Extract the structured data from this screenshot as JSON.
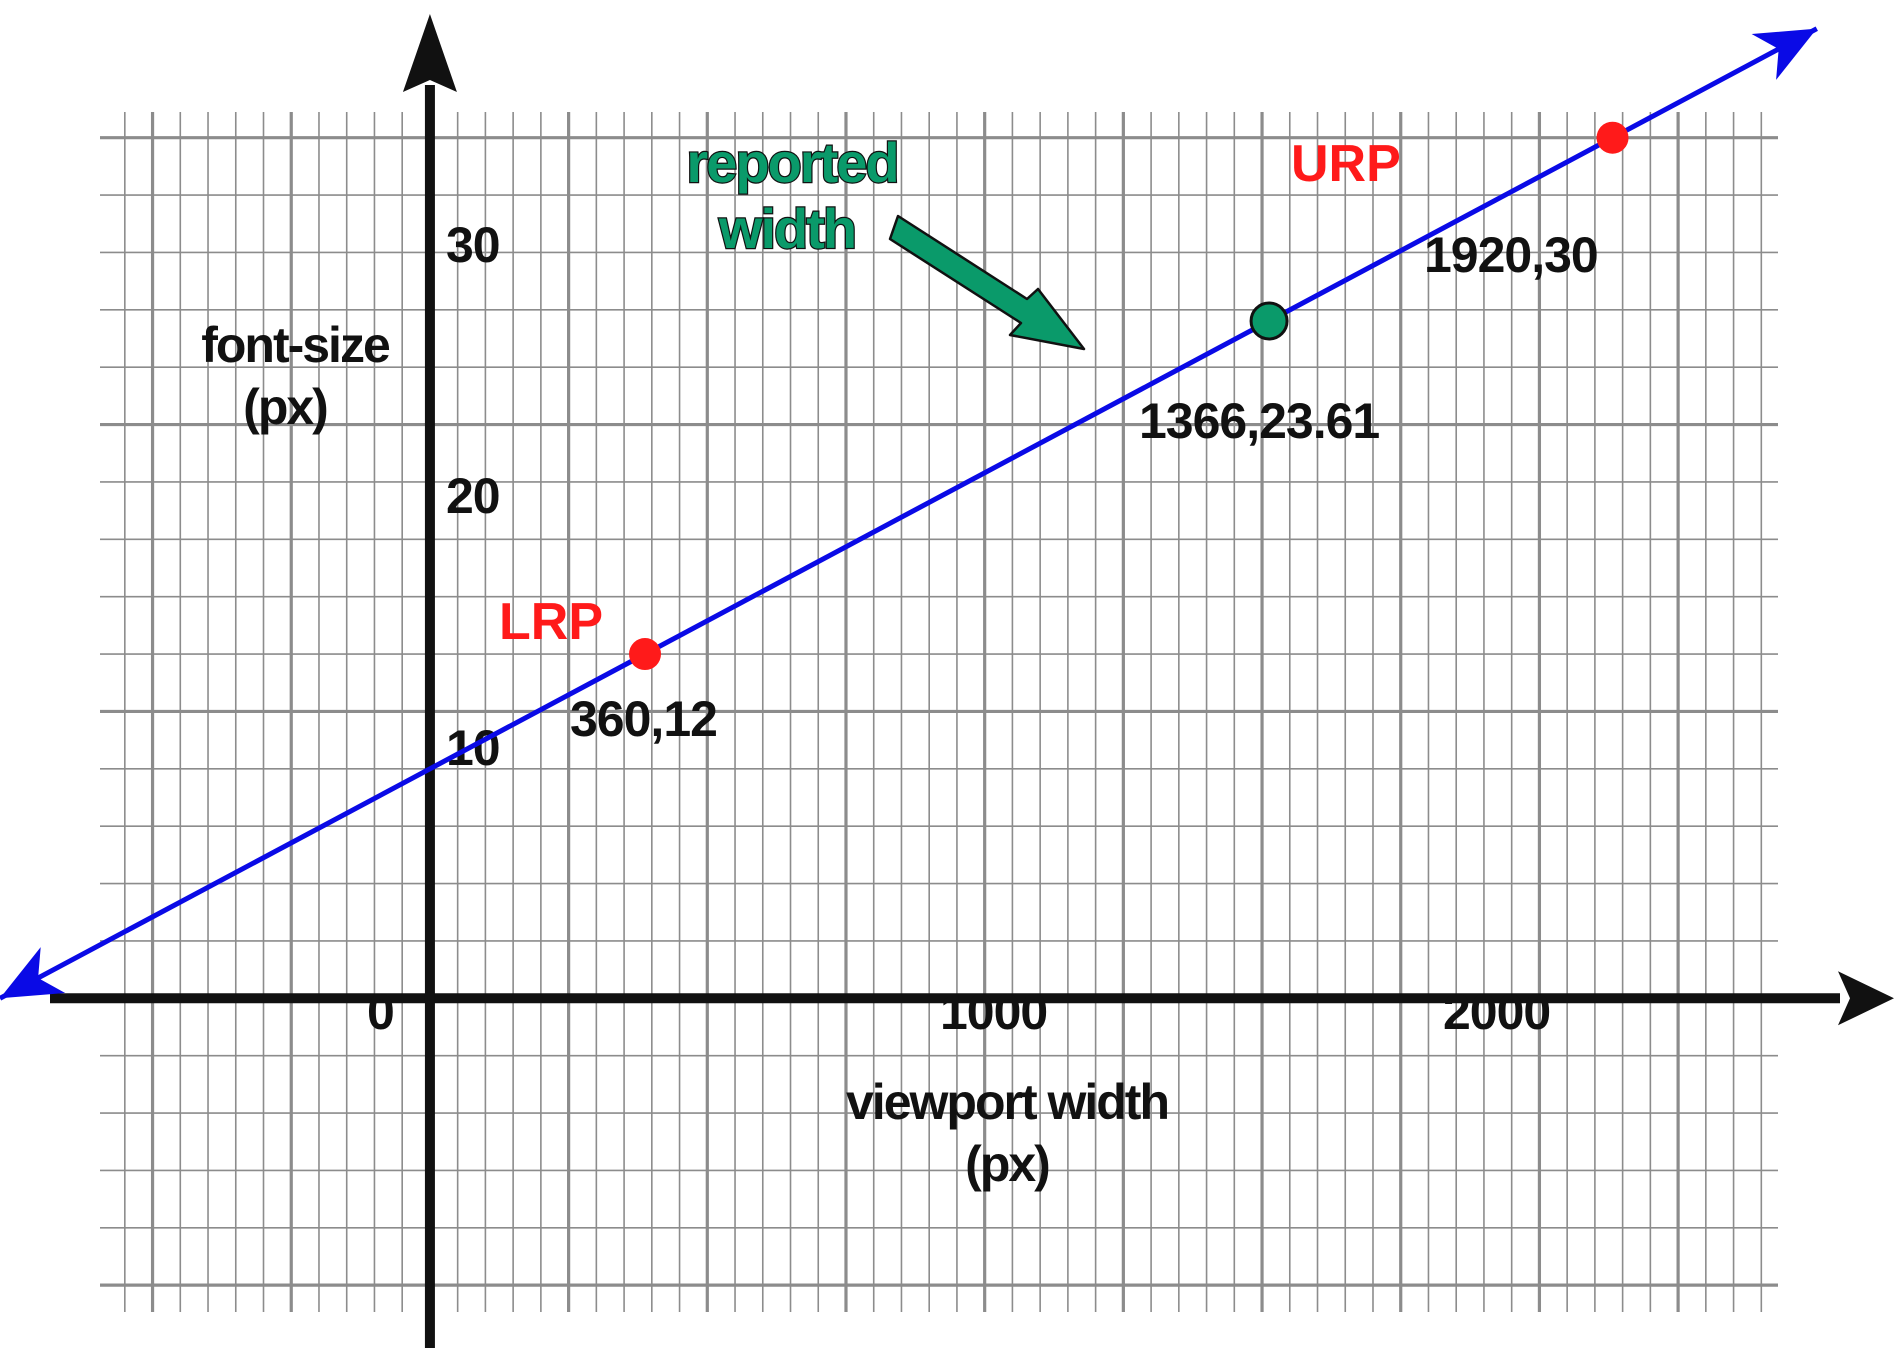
{
  "colors": {
    "grid": "#8c8c8c",
    "axis": "#111111",
    "line": "#0a0ae6",
    "reference_point": "#ff1a1a",
    "reported_point": "#0a9a6a"
  },
  "chart_data": {
    "type": "line",
    "xlabel": [
      "viewport width",
      "(px)"
    ],
    "ylabel": [
      "font-size",
      "(px)"
    ],
    "x_ticks": [
      {
        "value": 0,
        "label": "0"
      },
      {
        "value": 1000,
        "label": "1000"
      },
      {
        "value": 2000,
        "label": "2000"
      }
    ],
    "y_ticks": [
      {
        "value": 10,
        "label": "10"
      },
      {
        "value": 20,
        "label": "20"
      },
      {
        "value": 30,
        "label": "30"
      }
    ],
    "xlim": [
      -1550,
      5300
    ],
    "ylim": [
      -12.4,
      34.8
    ],
    "grid": true,
    "grid_minor_x": 100,
    "grid_minor_y": 2,
    "line": {
      "x": [
        -1550,
        5000
      ],
      "y": [
        0,
        33.8
      ]
    },
    "points": [
      {
        "x": 360,
        "y": 12,
        "label": "360,12",
        "tag": "LRP",
        "kind": "reference"
      },
      {
        "x": 1366,
        "y": 23.61,
        "label": "1366,23.61",
        "kind": "reported"
      },
      {
        "x": 1920,
        "y": 30,
        "label": "1920,30",
        "tag": "URP",
        "kind": "reference"
      }
    ],
    "annotations": [
      {
        "text": [
          "reported",
          "width"
        ],
        "target": "reported"
      }
    ]
  }
}
